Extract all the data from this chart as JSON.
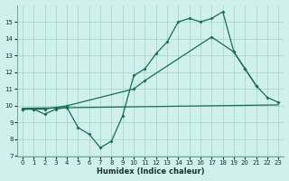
{
  "xlabel": "Humidex (Indice chaleur)",
  "bg_color": "#cff0eb",
  "grid_color": "#a8d8d0",
  "line_color": "#1a6b5a",
  "xlim": [
    -0.5,
    23.5
  ],
  "ylim": [
    7,
    16
  ],
  "xticks": [
    0,
    1,
    2,
    3,
    4,
    5,
    6,
    7,
    8,
    9,
    10,
    11,
    12,
    13,
    14,
    15,
    16,
    17,
    18,
    19,
    20,
    21,
    22,
    23
  ],
  "yticks": [
    7,
    8,
    9,
    10,
    11,
    12,
    13,
    14,
    15
  ],
  "curve1_x": [
    0,
    1,
    2,
    3,
    4,
    5,
    6,
    7,
    8,
    9,
    10,
    11,
    12,
    13,
    14,
    15,
    16,
    17,
    18,
    19,
    20,
    21
  ],
  "curve1_y": [
    9.8,
    9.8,
    9.5,
    9.8,
    9.9,
    8.7,
    8.3,
    7.5,
    7.9,
    9.4,
    11.8,
    12.2,
    13.1,
    13.8,
    15.0,
    15.2,
    15.0,
    15.2,
    15.6,
    13.2,
    12.2,
    11.2
  ],
  "curve2_x": [
    0,
    1,
    2,
    3,
    4,
    10,
    11,
    17,
    19,
    20,
    21,
    22,
    23
  ],
  "curve2_y": [
    9.8,
    9.8,
    9.8,
    9.9,
    10.0,
    11.0,
    11.5,
    14.1,
    13.2,
    12.2,
    11.2,
    10.5,
    10.2
  ],
  "curve3_x": [
    0,
    23
  ],
  "curve3_y": [
    9.85,
    10.05
  ]
}
